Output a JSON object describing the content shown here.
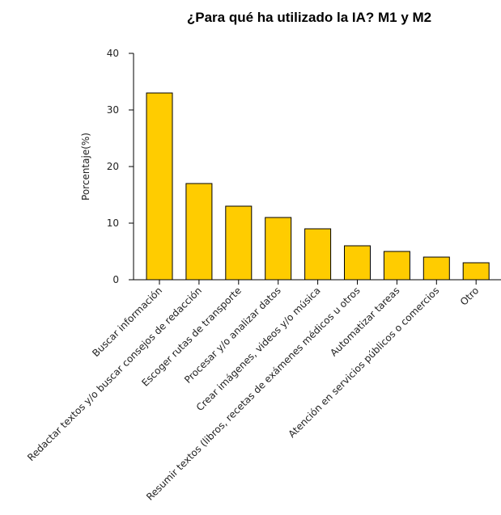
{
  "chart_data": {
    "type": "bar",
    "title": "¿Para qué ha utilizado la IA? M1 y M2",
    "xlabel": "",
    "ylabel": "Porcentaje(%)",
    "categories": [
      "Buscar información",
      "Redactar textos y/o buscar consejos de redacción",
      "Escoger rutas de transporte",
      "Procesar y/o analizar datos",
      "Crear imágenes, videos y/o música",
      "Resumir textos (libros, recetas de exámenes médicos u otros",
      "Automatizar tareas",
      "Atención en servicios públicos o comercios",
      "Otro"
    ],
    "values": [
      33,
      17,
      13,
      11,
      9,
      6,
      5,
      4,
      3
    ],
    "ylim": [
      0,
      40
    ],
    "yticks": [
      0,
      10,
      20,
      30,
      40
    ],
    "grid": false,
    "legend": "none",
    "bar_color": "#FFCC00"
  }
}
